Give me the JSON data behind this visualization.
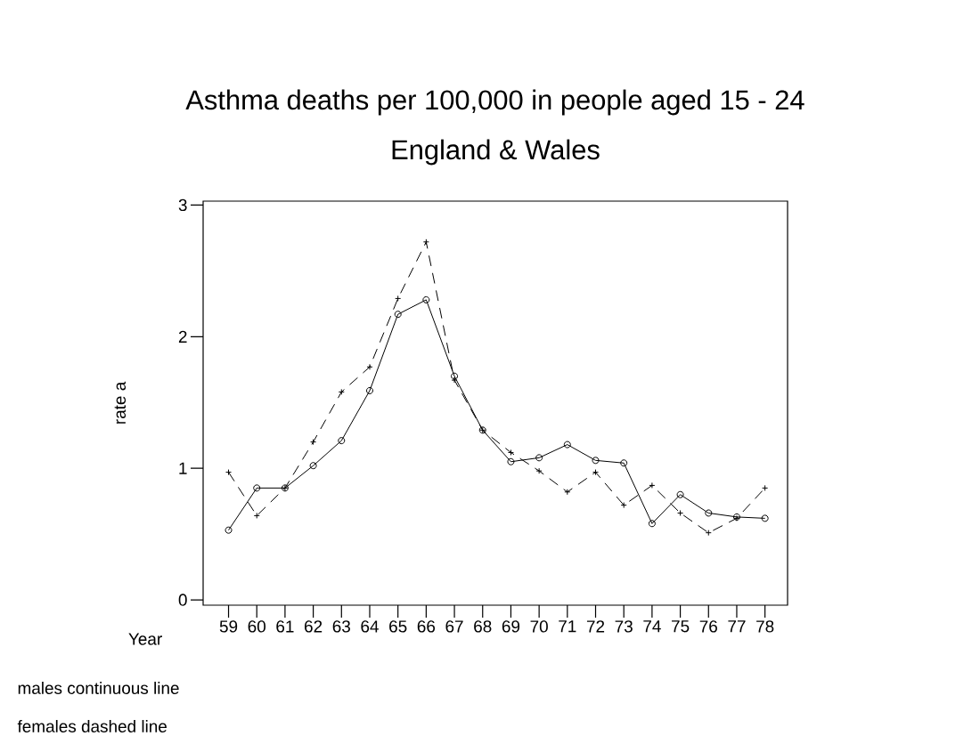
{
  "chart_data": {
    "type": "line",
    "title": "Asthma deaths per 100,000 in people aged 15 - 24",
    "subtitle": "England & Wales",
    "xlabel": "Year",
    "ylabel": "rate a",
    "categories": [
      "59",
      "60",
      "61",
      "62",
      "63",
      "64",
      "65",
      "66",
      "67",
      "68",
      "69",
      "70",
      "71",
      "72",
      "73",
      "74",
      "75",
      "76",
      "77",
      "78"
    ],
    "series": [
      {
        "color": "#000000",
        "marker": "circle",
        "line_style": "solid",
        "values": [
          0.53,
          0.85,
          0.85,
          1.02,
          1.21,
          1.59,
          2.17,
          2.28,
          1.7,
          1.29,
          1.05,
          1.08,
          1.18,
          1.06,
          1.04,
          0.58,
          0.8,
          0.66,
          0.63,
          0.62
        ]
      },
      {
        "color": "#000000",
        "marker": "cross",
        "line_style": "dashed",
        "values": [
          0.97,
          0.64,
          0.85,
          1.2,
          1.58,
          1.77,
          2.29,
          2.72,
          1.67,
          1.29,
          1.12,
          0.98,
          0.82,
          0.97,
          0.72,
          0.87,
          0.66,
          0.51,
          0.62,
          0.85
        ]
      }
    ],
    "ylim": [
      -0.04,
      3.03
    ],
    "yticks": [
      0,
      1,
      2,
      3
    ],
    "annotations": [
      "males continuous line",
      "females dashed line"
    ]
  }
}
